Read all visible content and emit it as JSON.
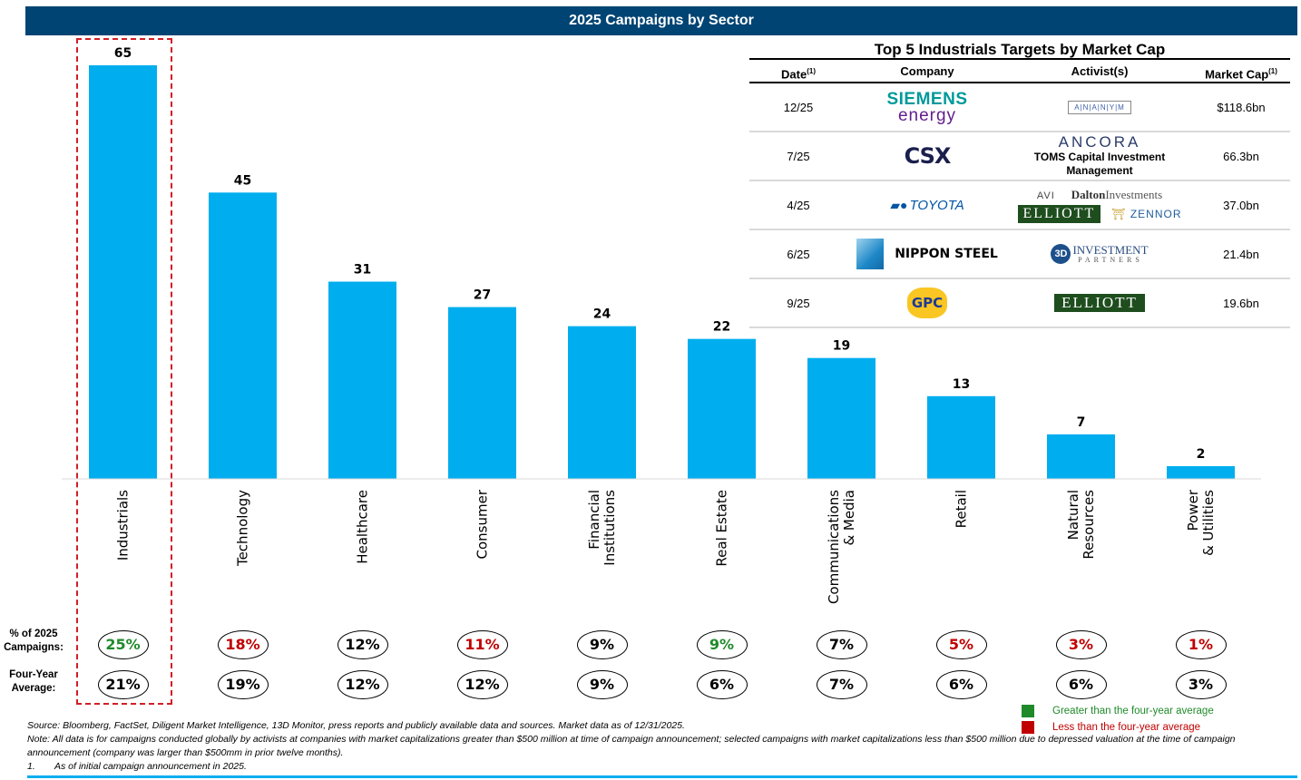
{
  "header": {
    "title": "2025 Campaigns by Sector"
  },
  "chart_data": {
    "type": "bar",
    "title": "2025 Campaigns by Sector",
    "xlabel": "",
    "ylabel": "",
    "ylim": [
      0,
      65
    ],
    "grid": false,
    "categories": [
      "Industrials",
      "Technology",
      "Healthcare",
      "Consumer",
      "Financial Institutions",
      "Real Estate",
      "Communications & Media",
      "Retail",
      "Natural Resources",
      "Power & Utilities"
    ],
    "category_lines": [
      [
        "Industrials"
      ],
      [
        "Technology"
      ],
      [
        "Healthcare"
      ],
      [
        "Consumer"
      ],
      [
        "Financial",
        "Institutions"
      ],
      [
        "Real Estate"
      ],
      [
        "Communications",
        "& Media"
      ],
      [
        "Retail"
      ],
      [
        "Natural",
        "Resources"
      ],
      [
        "Power",
        "& Utilities"
      ]
    ],
    "values": [
      65,
      45,
      31,
      27,
      24,
      22,
      19,
      13,
      7,
      2
    ],
    "bar_color": "#00AEEF",
    "highlighted_category": "Industrials",
    "pct_2025": [
      "25%",
      "18%",
      "12%",
      "11%",
      "9%",
      "9%",
      "7%",
      "5%",
      "3%",
      "1%"
    ],
    "pct_2025_status": [
      "green",
      "red",
      "black",
      "red",
      "black",
      "green",
      "black",
      "red",
      "red",
      "red"
    ],
    "four_year_avg": [
      "21%",
      "19%",
      "12%",
      "12%",
      "9%",
      "6%",
      "7%",
      "6%",
      "6%",
      "3%"
    ]
  },
  "rows": {
    "pct_label_1": "% of 2025",
    "pct_label_2": "Campaigns:",
    "avg_label_1": "Four-Year",
    "avg_label_2": "Average:"
  },
  "top5": {
    "title": "Top 5 Industrials Targets by Market Cap",
    "headers": {
      "date": "Date",
      "company": "Company",
      "activists": "Activist(s)",
      "market_cap": "Market Cap",
      "footnote_mark": "(1)"
    },
    "rows": [
      {
        "date": "12/25",
        "company": "Siemens Energy",
        "company_logo": [
          "SIEMENS",
          "energy"
        ],
        "activists": [
          "A|N|A|N|Y|M"
        ],
        "market_cap": "$118.6bn"
      },
      {
        "date": "7/25",
        "company": "CSX",
        "company_logo": [
          "CSX"
        ],
        "activists": [
          "ANCORA",
          "TOMS Capital Investment Management"
        ],
        "market_cap": "66.3bn"
      },
      {
        "date": "4/25",
        "company": "Toyota",
        "company_logo": [
          "TOYOTA"
        ],
        "activists": [
          "AVI",
          "Dalton",
          "Investments",
          "ELLIOTT",
          "ZENNOR",
          "ASSET MANAGEMENT"
        ],
        "market_cap": "37.0bn"
      },
      {
        "date": "6/25",
        "company": "Nippon Steel",
        "company_logo": [
          "NIPPON STEEL"
        ],
        "activists": [
          "3D",
          "INVESTMENT",
          "PARTNERS"
        ],
        "market_cap": "21.4bn"
      },
      {
        "date": "9/25",
        "company": "GPC",
        "company_logo": [
          "GPC"
        ],
        "activists": [
          "ELLIOTT"
        ],
        "market_cap": "19.6bn"
      }
    ]
  },
  "legend": {
    "greater": {
      "label": "Greater than the four-year average",
      "color": "#1F8A2A"
    },
    "less": {
      "label": "Less than the four-year average",
      "color": "#C00000"
    }
  },
  "footnotes": {
    "source": "Source: Bloomberg, FactSet, Diligent Market Intelligence, 13D Monitor, press reports and publicly available data and sources. Market data as of 12/31/2025.",
    "note": "Note: All data is for campaigns conducted globally by activists at companies with market capitalizations greater than $500 million at time of campaign announcement; selected campaigns with market capitalizations less than $500 million due to depressed valuation at the time of campaign announcement (company was larger than $500mm in prior twelve months).",
    "fn1_number": "1.",
    "fn1_text": "As of initial campaign announcement in 2025."
  }
}
